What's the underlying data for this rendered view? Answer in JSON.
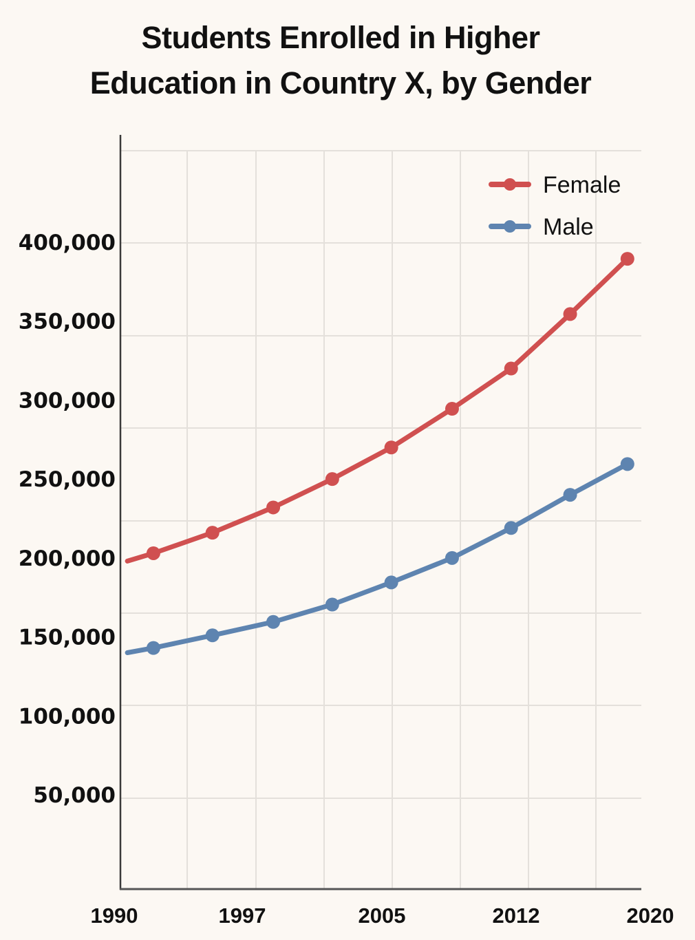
{
  "chart_data": {
    "type": "line",
    "title": "Students Enrolled in Higher Education in Country X, by Gender",
    "title_lines": [
      "Students Enrolled in Higher",
      "Education in Country X, by Gender"
    ],
    "xlabel": "",
    "ylabel": "",
    "x_tick_labels": [
      "1990",
      "1997",
      "2005",
      "2012",
      "2020"
    ],
    "x_tick_values": [
      1990,
      1997,
      2005,
      2012,
      2020
    ],
    "y_tick_labels": [
      "400,000",
      "350,000",
      "300,000",
      "250,000",
      "200,000",
      "150,000",
      "100,000",
      "50,000"
    ],
    "y_tick_values": [
      400000,
      350000,
      300000,
      250000,
      200000,
      150000,
      100000,
      50000
    ],
    "xlim": [
      1990,
      2020
    ],
    "ylim": [
      0,
      470000
    ],
    "grid": true,
    "legend_position": "top-right",
    "x": [
      1990.4,
      1991.9,
      1995.3,
      1998.8,
      2002.2,
      2005.6,
      2009.1,
      2012.5,
      2015.9,
      2019.2
    ],
    "marker_start_index": 1,
    "series": [
      {
        "name": "Female",
        "color": "#d05050",
        "values": [
          198000,
          203000,
          216000,
          232000,
          250000,
          270000,
          294500,
          320000,
          354500,
          389500
        ]
      },
      {
        "name": "Male",
        "color": "#5e84b0",
        "values": [
          140000,
          143000,
          151000,
          159500,
          170500,
          184500,
          200000,
          219000,
          240000,
          259500
        ]
      }
    ]
  }
}
